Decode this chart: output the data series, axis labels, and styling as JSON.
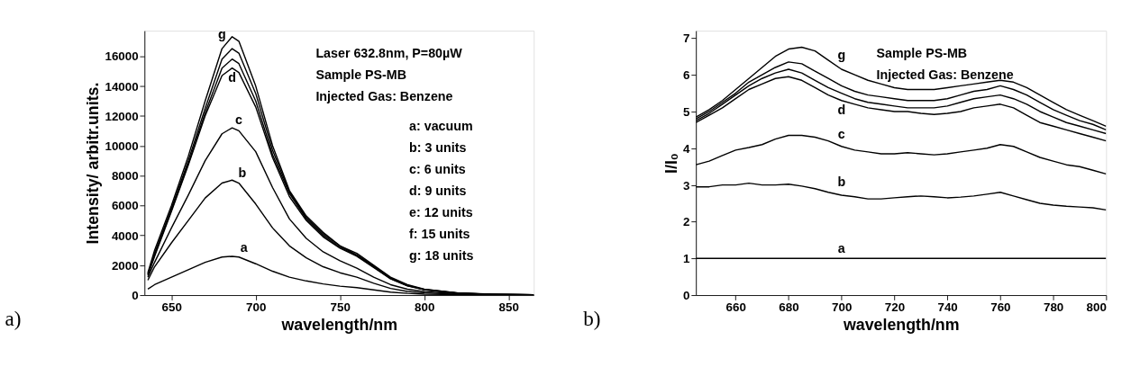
{
  "chart_data": [
    {
      "type": "line",
      "title": "a)",
      "xlabel": "wavelength/nm",
      "ylabel": "Intensity/ arbitr.units.",
      "x": [
        636,
        640,
        650,
        660,
        670,
        680,
        686,
        690,
        700,
        710,
        720,
        730,
        740,
        750,
        760,
        770,
        780,
        790,
        800,
        820,
        840,
        865
      ],
      "series": [
        {
          "color": "#000000",
          "values": [
            400,
            700,
            1200,
            1700,
            2200,
            2550,
            2600,
            2550,
            2100,
            1600,
            1200,
            950,
            750,
            600,
            500,
            350,
            200,
            120,
            70,
            30,
            20,
            10
          ]
        },
        {
          "color": "#000000",
          "values": [
            1000,
            1900,
            3500,
            5000,
            6500,
            7500,
            7700,
            7500,
            6100,
            4500,
            3300,
            2500,
            1900,
            1500,
            1200,
            800,
            450,
            250,
            150,
            60,
            30,
            20
          ]
        },
        {
          "color": "#000000",
          "values": [
            1200,
            2200,
            4500,
            6700,
            9000,
            10800,
            11200,
            11000,
            9600,
            7200,
            5100,
            3800,
            2900,
            2300,
            1800,
            1200,
            700,
            400,
            230,
            90,
            40,
            20
          ]
        },
        {
          "color": "#000000",
          "values": [
            1300,
            2600,
            5600,
            8700,
            12000,
            14700,
            15200,
            14900,
            12600,
            9200,
            6600,
            5000,
            3900,
            3150,
            2600,
            1850,
            1100,
            620,
            360,
            130,
            60,
            30
          ]
        },
        {
          "color": "#000000",
          "values": [
            1400,
            2700,
            5700,
            8800,
            12200,
            15200,
            15800,
            15500,
            13000,
            9400,
            6800,
            5100,
            4000,
            3200,
            2650,
            1900,
            1100,
            630,
            370,
            130,
            60,
            30
          ]
        },
        {
          "color": "#000000",
          "values": [
            1400,
            2800,
            5800,
            9000,
            12500,
            15800,
            16500,
            16200,
            13500,
            9700,
            6900,
            5200,
            4100,
            3300,
            2700,
            1950,
            1150,
            650,
            380,
            140,
            60,
            30
          ]
        },
        {
          "color": "#000000",
          "values": [
            1500,
            3000,
            6000,
            9300,
            13000,
            16500,
            17300,
            17000,
            14000,
            10000,
            7000,
            5300,
            4200,
            3300,
            2800,
            2000,
            1200,
            700,
            400,
            150,
            70,
            30
          ]
        }
      ],
      "annotations": [
        "Laser 632.8nm, P=80µW",
        "Sample PS-MB",
        "Injected Gas: Benzene",
        "a: vacuum",
        "b: 3 units",
        "c: 6 units",
        "d: 9 units",
        "e: 12 units",
        "f: 15 units",
        "g: 18 units",
        {
          "text": "g",
          "x": 680,
          "y": 16900
        },
        {
          "text": "d",
          "x": 686,
          "y": 15200
        },
        {
          "text": "c",
          "x": 690,
          "y": 11200
        },
        {
          "text": "b",
          "x": 692,
          "y": 7600
        },
        {
          "text": "a",
          "x": 693,
          "y": 2600
        }
      ],
      "xlim": [
        634,
        865
      ],
      "ylim": [
        0,
        17700
      ],
      "xticks": [
        650,
        700,
        750,
        800,
        850
      ],
      "yticks": [
        0,
        2000,
        4000,
        6000,
        8000,
        10000,
        12000,
        14000,
        16000
      ],
      "grid": false,
      "marker": "none",
      "line_style": "solid"
    },
    {
      "type": "line",
      "title": "b)",
      "xlabel": "wavelength/nm",
      "ylabel": "I/I₀",
      "x": [
        645,
        650,
        655,
        660,
        665,
        670,
        675,
        680,
        685,
        690,
        695,
        700,
        705,
        710,
        715,
        720,
        725,
        730,
        735,
        740,
        745,
        750,
        755,
        760,
        765,
        770,
        775,
        780,
        785,
        790,
        795,
        800
      ],
      "series": [
        {
          "color": "#000000",
          "x": [
            645,
            800
          ],
          "values": [
            1,
            1
          ]
        },
        {
          "color": "#000000",
          "values": [
            2.95,
            2.95,
            3.0,
            3.0,
            3.05,
            3.0,
            3.0,
            3.02,
            2.97,
            2.9,
            2.8,
            2.72,
            2.68,
            2.62,
            2.62,
            2.65,
            2.68,
            2.7,
            2.68,
            2.65,
            2.67,
            2.7,
            2.75,
            2.8,
            2.7,
            2.6,
            2.5,
            2.45,
            2.42,
            2.4,
            2.38,
            2.32
          ]
        },
        {
          "color": "#000000",
          "values": [
            3.55,
            3.65,
            3.8,
            3.95,
            4.02,
            4.1,
            4.25,
            4.35,
            4.35,
            4.3,
            4.2,
            4.05,
            3.95,
            3.9,
            3.85,
            3.85,
            3.88,
            3.85,
            3.82,
            3.85,
            3.9,
            3.95,
            4.0,
            4.1,
            4.05,
            3.9,
            3.75,
            3.65,
            3.55,
            3.5,
            3.4,
            3.3
          ]
        },
        {
          "color": "#000000",
          "values": [
            4.7,
            4.9,
            5.1,
            5.35,
            5.6,
            5.75,
            5.9,
            5.95,
            5.85,
            5.65,
            5.45,
            5.3,
            5.2,
            5.1,
            5.05,
            5.0,
            5.0,
            4.95,
            4.92,
            4.95,
            5.0,
            5.1,
            5.15,
            5.2,
            5.1,
            4.9,
            4.7,
            4.6,
            4.5,
            4.4,
            4.3,
            4.2
          ]
        },
        {
          "color": "#000000",
          "values": [
            4.75,
            4.95,
            5.2,
            5.45,
            5.7,
            5.9,
            6.05,
            6.15,
            6.05,
            5.85,
            5.65,
            5.5,
            5.35,
            5.25,
            5.2,
            5.15,
            5.1,
            5.1,
            5.1,
            5.15,
            5.25,
            5.35,
            5.4,
            5.45,
            5.35,
            5.2,
            5.0,
            4.85,
            4.7,
            4.6,
            4.5,
            4.4
          ]
        },
        {
          "color": "#000000",
          "values": [
            4.8,
            5.0,
            5.25,
            5.5,
            5.8,
            6.0,
            6.2,
            6.35,
            6.3,
            6.1,
            5.9,
            5.7,
            5.55,
            5.45,
            5.4,
            5.35,
            5.3,
            5.3,
            5.3,
            5.35,
            5.45,
            5.55,
            5.6,
            5.7,
            5.6,
            5.45,
            5.25,
            5.05,
            4.9,
            4.75,
            4.65,
            4.5
          ]
        },
        {
          "color": "#000000",
          "values": [
            4.85,
            5.05,
            5.3,
            5.6,
            5.9,
            6.2,
            6.5,
            6.7,
            6.75,
            6.65,
            6.4,
            6.15,
            6.0,
            5.85,
            5.75,
            5.65,
            5.6,
            5.6,
            5.6,
            5.65,
            5.7,
            5.75,
            5.8,
            5.85,
            5.8,
            5.65,
            5.45,
            5.25,
            5.05,
            4.9,
            4.75,
            4.6
          ]
        }
      ],
      "annotations": [
        "Sample PS-MB",
        "Injected Gas: Benzene",
        {
          "text": "g",
          "x": 700,
          "y": 6.3
        },
        {
          "text": "d",
          "x": 700,
          "y": 5.3
        },
        {
          "text": "c",
          "x": 700,
          "y": 4.15
        },
        {
          "text": "b",
          "x": 700,
          "y": 2.85
        },
        {
          "text": "a",
          "x": 700,
          "y": 1.05
        }
      ],
      "xlim": [
        645,
        800
      ],
      "ylim": [
        0,
        7.2
      ],
      "xticks": [
        660,
        680,
        700,
        720,
        740,
        760,
        780,
        800
      ],
      "yticks": [
        0,
        1,
        2,
        3,
        4,
        5,
        6,
        7
      ],
      "grid": false,
      "marker": "none",
      "line_style": "solid"
    }
  ]
}
